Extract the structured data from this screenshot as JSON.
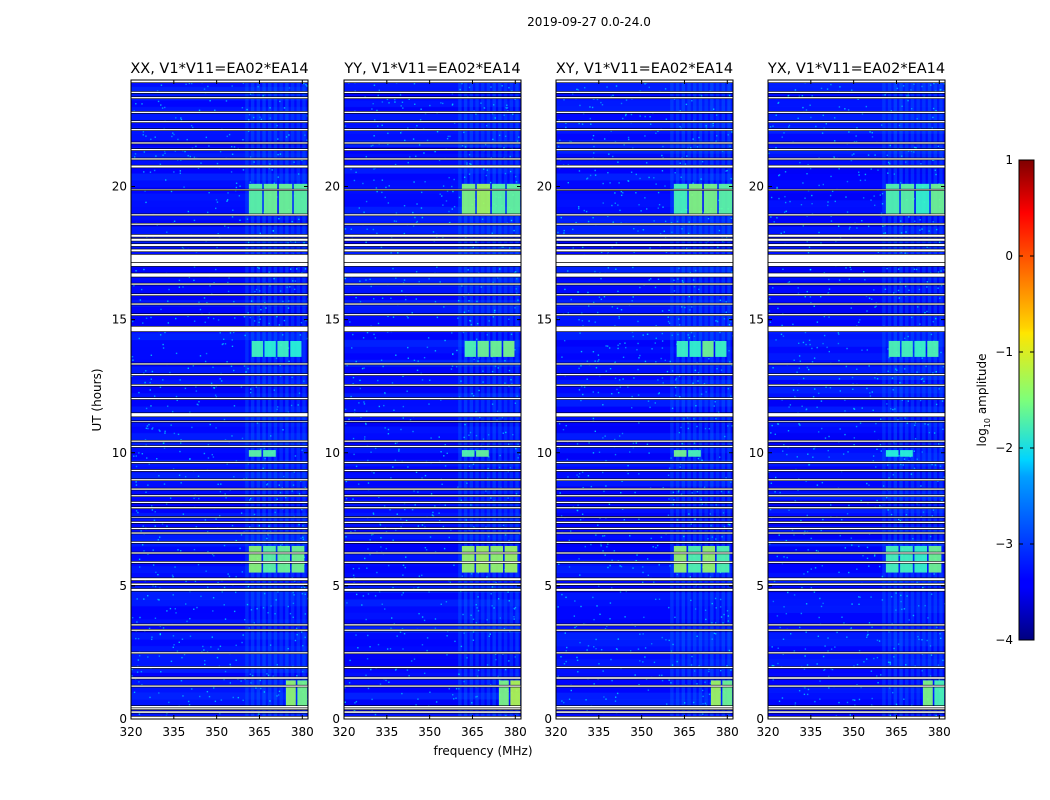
{
  "chart_data": {
    "type": "heatmap",
    "title": "2019-09-27 0.0-24.0",
    "xlabel": "frequency (MHz)",
    "ylabel": "UT (hours)",
    "xlim": [
      320,
      382
    ],
    "ylim": [
      0,
      24
    ],
    "xticks": [
      "320",
      "335",
      "350",
      "365",
      "380"
    ],
    "yticks": [
      "0",
      "5",
      "10",
      "15",
      "20"
    ],
    "panels": [
      {
        "title": "XX, V1*V11=EA02*EA14"
      },
      {
        "title": "YY, V1*V11=EA02*EA14"
      },
      {
        "title": "XY, V1*V11=EA02*EA14"
      },
      {
        "title": "YX, V1*V11=EA02*EA14"
      }
    ],
    "colorbar": {
      "label_prefix": "log",
      "label_sub": "10",
      "label_suffix": " amplitude",
      "ticks": [
        "1",
        "0",
        "−1",
        "−2",
        "−3",
        "−4"
      ],
      "vmin": -4,
      "vmax": 1,
      "colormap": "jet"
    },
    "flagged_bands_hours": [
      [
        0.0,
        0.1
      ],
      [
        0.22,
        0.3
      ],
      [
        0.35,
        0.42
      ],
      [
        0.42,
        0.5
      ],
      [
        1.2,
        1.27
      ],
      [
        1.5,
        1.58
      ],
      [
        1.9,
        1.97
      ],
      [
        2.45,
        2.52
      ],
      [
        3.3,
        3.37
      ],
      [
        3.5,
        3.57
      ],
      [
        4.8,
        4.9
      ],
      [
        5.02,
        5.1
      ],
      [
        5.2,
        5.3
      ],
      [
        5.85,
        5.92
      ],
      [
        6.2,
        6.27
      ],
      [
        6.6,
        6.67
      ],
      [
        6.95,
        7.02
      ],
      [
        7.12,
        7.19
      ],
      [
        7.35,
        7.42
      ],
      [
        7.55,
        7.6
      ],
      [
        7.9,
        7.97
      ],
      [
        8.1,
        8.17
      ],
      [
        8.35,
        8.42
      ],
      [
        8.6,
        8.67
      ],
      [
        8.95,
        9.02
      ],
      [
        9.3,
        9.37
      ],
      [
        9.6,
        9.67
      ],
      [
        10.2,
        10.27
      ],
      [
        10.4,
        10.47
      ],
      [
        11.15,
        11.2
      ],
      [
        11.35,
        11.5
      ],
      [
        12.0,
        12.07
      ],
      [
        12.5,
        12.57
      ],
      [
        12.9,
        12.97
      ],
      [
        13.3,
        13.37
      ],
      [
        14.55,
        14.75
      ],
      [
        15.15,
        15.22
      ],
      [
        15.55,
        15.62
      ],
      [
        15.9,
        15.97
      ],
      [
        16.3,
        16.37
      ],
      [
        16.6,
        16.75
      ],
      [
        17.0,
        17.15
      ],
      [
        17.15,
        17.45
      ],
      [
        17.55,
        17.65
      ],
      [
        17.75,
        17.85
      ],
      [
        17.95,
        18.05
      ],
      [
        18.1,
        18.2
      ],
      [
        18.55,
        18.62
      ],
      [
        18.9,
        18.97
      ],
      [
        19.85,
        19.9
      ],
      [
        20.7,
        20.8
      ],
      [
        21.0,
        21.07
      ],
      [
        21.35,
        21.42
      ],
      [
        21.6,
        21.67
      ],
      [
        22.1,
        22.17
      ],
      [
        22.4,
        22.47
      ],
      [
        22.75,
        22.82
      ],
      [
        23.3,
        23.37
      ],
      [
        23.5,
        23.57
      ],
      [
        23.9,
        24.0
      ]
    ],
    "rfi_patches": [
      {
        "ut": [
          0.5,
          1.45
        ],
        "mhz": [
          374,
          382
        ],
        "log_amp": -1.3
      },
      {
        "ut": [
          5.5,
          6.5
        ],
        "mhz": [
          361,
          381
        ],
        "log_amp": -1.4
      },
      {
        "ut": [
          9.85,
          10.1
        ],
        "mhz": [
          361,
          371
        ],
        "log_amp": -1.5
      },
      {
        "ut": [
          13.6,
          14.2
        ],
        "mhz": [
          362,
          380
        ],
        "log_amp": -1.6
      },
      {
        "ut": [
          18.9,
          20.1
        ],
        "mhz": [
          361,
          382
        ],
        "log_amp": -1.5
      }
    ]
  }
}
